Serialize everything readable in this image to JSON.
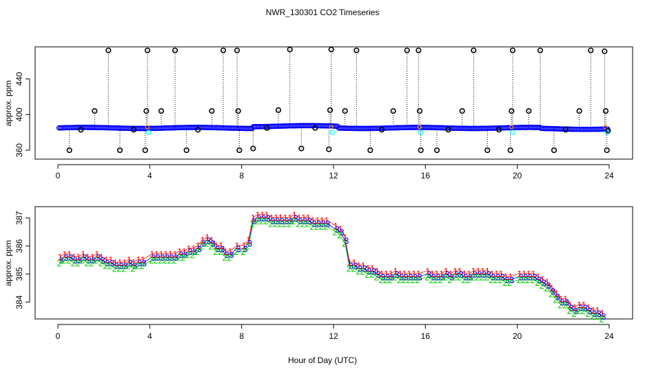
{
  "title": "NWR_130301  CO2 Timeseries",
  "xlabel": "Hour of Day (UTC)",
  "chart_data": [
    {
      "type": "scatter",
      "name": "top-panel",
      "ylabel": "approx. ppm",
      "xlim": [
        0,
        24
      ],
      "ylim": [
        350,
        476
      ],
      "xticks": [
        0,
        4,
        8,
        12,
        16,
        20,
        24
      ],
      "yticks": [
        360,
        400,
        440
      ],
      "baseline_ppm": 385,
      "spike_note": "black circles with dotted drop lines; values estimated",
      "spikes": [
        {
          "x": 0.5,
          "y": 360
        },
        {
          "x": 1.0,
          "y": 383
        },
        {
          "x": 1.6,
          "y": 404
        },
        {
          "x": 2.2,
          "y": 472
        },
        {
          "x": 2.7,
          "y": 360
        },
        {
          "x": 3.3,
          "y": 383
        },
        {
          "x": 3.8,
          "y": 360
        },
        {
          "x": 3.85,
          "y": 404
        },
        {
          "x": 3.9,
          "y": 472
        },
        {
          "x": 4.5,
          "y": 404
        },
        {
          "x": 5.1,
          "y": 472
        },
        {
          "x": 5.6,
          "y": 360
        },
        {
          "x": 6.1,
          "y": 383
        },
        {
          "x": 6.7,
          "y": 404
        },
        {
          "x": 7.2,
          "y": 472
        },
        {
          "x": 7.8,
          "y": 472
        },
        {
          "x": 7.85,
          "y": 404
        },
        {
          "x": 7.9,
          "y": 360
        },
        {
          "x": 8.5,
          "y": 362
        },
        {
          "x": 9.1,
          "y": 385
        },
        {
          "x": 9.6,
          "y": 405
        },
        {
          "x": 10.1,
          "y": 473
        },
        {
          "x": 10.6,
          "y": 362
        },
        {
          "x": 11.2,
          "y": 385
        },
        {
          "x": 11.8,
          "y": 361
        },
        {
          "x": 11.85,
          "y": 405
        },
        {
          "x": 11.9,
          "y": 473
        },
        {
          "x": 12.5,
          "y": 404
        },
        {
          "x": 13.0,
          "y": 472
        },
        {
          "x": 13.6,
          "y": 360
        },
        {
          "x": 14.1,
          "y": 383
        },
        {
          "x": 14.6,
          "y": 404
        },
        {
          "x": 15.2,
          "y": 472
        },
        {
          "x": 15.7,
          "y": 472
        },
        {
          "x": 15.75,
          "y": 404
        },
        {
          "x": 15.8,
          "y": 360
        },
        {
          "x": 16.5,
          "y": 360
        },
        {
          "x": 17.0,
          "y": 383
        },
        {
          "x": 17.6,
          "y": 404
        },
        {
          "x": 18.1,
          "y": 472
        },
        {
          "x": 18.7,
          "y": 360
        },
        {
          "x": 19.2,
          "y": 383
        },
        {
          "x": 19.7,
          "y": 360
        },
        {
          "x": 19.75,
          "y": 404
        },
        {
          "x": 19.8,
          "y": 472
        },
        {
          "x": 20.5,
          "y": 404
        },
        {
          "x": 21.0,
          "y": 472
        },
        {
          "x": 21.6,
          "y": 360
        },
        {
          "x": 22.1,
          "y": 383
        },
        {
          "x": 22.7,
          "y": 404
        },
        {
          "x": 23.2,
          "y": 472
        },
        {
          "x": 23.8,
          "y": 471
        },
        {
          "x": 23.85,
          "y": 404
        },
        {
          "x": 23.9,
          "y": 360
        },
        {
          "x": 23.95,
          "y": 382
        }
      ],
      "colors": {
        "spike": "#000000",
        "baseline": "#0000ff",
        "highlight": "#00ffff",
        "accent": "#ff9900"
      }
    },
    {
      "type": "scatter",
      "name": "bottom-panel",
      "ylabel": "approx. ppm",
      "xlim": [
        0,
        24
      ],
      "ylim": [
        383.4,
        387.4
      ],
      "xticks": [
        0,
        4,
        8,
        12,
        16,
        20,
        24
      ],
      "yticks": [
        384,
        385,
        386,
        387
      ],
      "marker_labels": [
        "1",
        "2",
        "3"
      ],
      "series": [
        {
          "name": "1",
          "color": "#ff0000",
          "offset": 0.12
        },
        {
          "name": "3",
          "color": "#0000ff",
          "offset": 0.0
        },
        {
          "name": "2",
          "color": "#00cc00",
          "offset": -0.1
        }
      ],
      "x": [
        0.1,
        0.3,
        0.5,
        0.7,
        0.9,
        1.1,
        1.3,
        1.5,
        1.7,
        1.9,
        2.1,
        2.3,
        2.5,
        2.7,
        2.9,
        3.1,
        3.3,
        3.5,
        3.7,
        4.1,
        4.3,
        4.5,
        4.7,
        4.9,
        5.1,
        5.3,
        5.5,
        5.7,
        5.9,
        6.1,
        6.3,
        6.5,
        6.7,
        6.9,
        7.1,
        7.3,
        7.5,
        7.8,
        8.1,
        8.3,
        8.5,
        8.7,
        8.9,
        9.1,
        9.3,
        9.5,
        9.7,
        9.9,
        10.1,
        10.3,
        10.5,
        10.7,
        10.9,
        11.1,
        11.3,
        11.5,
        11.7,
        12.1,
        12.3,
        12.5,
        12.7,
        12.9,
        13.1,
        13.3,
        13.5,
        13.7,
        13.9,
        14.1,
        14.3,
        14.5,
        14.7,
        14.9,
        15.1,
        15.3,
        15.5,
        15.7,
        16.1,
        16.3,
        16.5,
        16.7,
        16.9,
        17.1,
        17.3,
        17.5,
        17.7,
        17.9,
        18.1,
        18.3,
        18.5,
        18.7,
        18.9,
        19.1,
        19.3,
        19.5,
        19.7,
        20.1,
        20.3,
        20.5,
        20.7,
        20.9,
        21.1,
        21.3,
        21.5,
        21.7,
        21.9,
        22.1,
        22.3,
        22.5,
        22.7,
        22.9,
        23.1,
        23.3,
        23.5,
        23.7
      ],
      "values": [
        385.5,
        385.6,
        385.6,
        385.5,
        385.5,
        385.6,
        385.5,
        385.5,
        385.6,
        385.5,
        385.4,
        385.4,
        385.3,
        385.3,
        385.3,
        385.4,
        385.3,
        385.4,
        385.4,
        385.6,
        385.6,
        385.6,
        385.6,
        385.6,
        385.6,
        385.7,
        385.7,
        385.8,
        385.8,
        385.9,
        386.1,
        386.2,
        386.1,
        385.9,
        385.9,
        385.7,
        385.7,
        385.9,
        385.9,
        386.1,
        386.9,
        387.0,
        387.0,
        387.0,
        386.9,
        386.9,
        386.9,
        386.9,
        386.9,
        387.0,
        386.9,
        386.9,
        386.9,
        386.8,
        386.8,
        386.8,
        386.8,
        386.6,
        386.5,
        386.2,
        385.3,
        385.3,
        385.2,
        385.2,
        385.1,
        385.1,
        385.0,
        384.9,
        384.9,
        384.9,
        385.0,
        384.9,
        384.9,
        384.9,
        384.9,
        384.9,
        385.0,
        384.9,
        384.9,
        384.9,
        385.0,
        384.9,
        385.0,
        385.0,
        384.9,
        384.9,
        385.0,
        385.0,
        385.0,
        385.0,
        384.9,
        384.9,
        384.9,
        384.8,
        384.8,
        384.9,
        384.9,
        384.9,
        384.9,
        384.8,
        384.7,
        384.6,
        384.4,
        384.2,
        384.0,
        384.0,
        383.8,
        383.7,
        383.8,
        383.8,
        383.7,
        383.6,
        383.6,
        383.5
      ]
    }
  ]
}
